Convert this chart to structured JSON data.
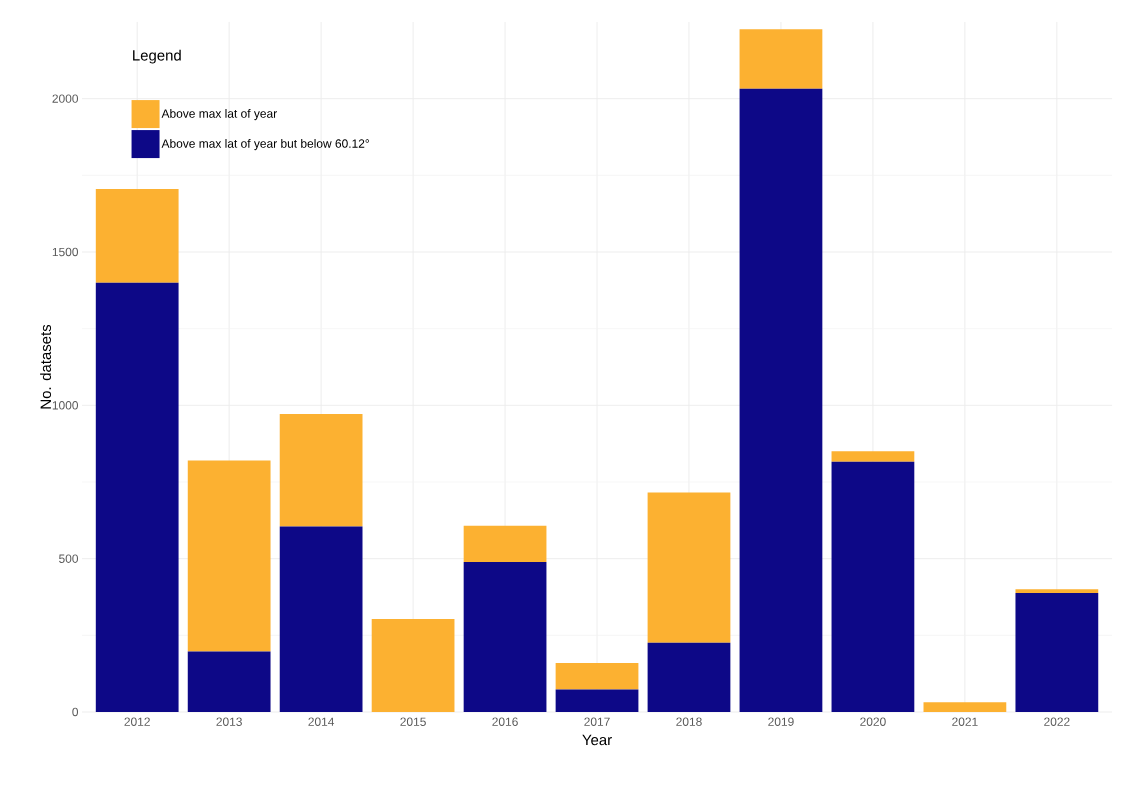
{
  "chart_data": {
    "type": "bar",
    "stacked": true,
    "xlabel": "Year",
    "ylabel": "No. datasets",
    "legend_title": "Legend",
    "legend": "top left",
    "categories": [
      "2012",
      "2013",
      "2014",
      "2015",
      "2016",
      "2017",
      "2018",
      "2019",
      "2020",
      "2021",
      "2022"
    ],
    "series": [
      {
        "name": "Above max lat of year but below 60.12°",
        "color": "#0d0887",
        "values": [
          1400,
          197,
          605,
          0,
          489,
          73,
          226,
          2032,
          816,
          0,
          388
        ]
      },
      {
        "name": "Above max lat of year",
        "color": "#fcb131",
        "values": [
          305,
          623,
          367,
          303,
          118,
          87,
          490,
          194,
          34,
          32,
          12
        ]
      }
    ],
    "ylim": [
      0,
      2250
    ],
    "yticks": [
      0,
      500,
      1000,
      1500,
      2000
    ],
    "grid": true
  }
}
